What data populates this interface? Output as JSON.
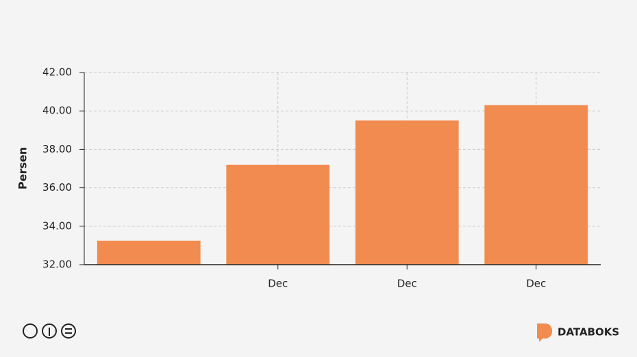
{
  "chart_data": {
    "type": "bar",
    "y_label": "Persen",
    "categories": [
      null,
      "Dec",
      "Dec",
      "Dec"
    ],
    "values": [
      33.25,
      37.2,
      39.5,
      40.3
    ],
    "color": "#f28b50",
    "ylim": [
      32,
      42
    ],
    "yticks": [
      {
        "value": 32,
        "label": "32.00"
      },
      {
        "value": 34,
        "label": "34.00"
      },
      {
        "value": 36,
        "label": "36.00"
      },
      {
        "value": 38,
        "label": "38.00"
      },
      {
        "value": 40,
        "label": "40.00"
      },
      {
        "value": 42,
        "label": "42.00"
      }
    ],
    "grid": true
  },
  "branding": "DATABOKS"
}
